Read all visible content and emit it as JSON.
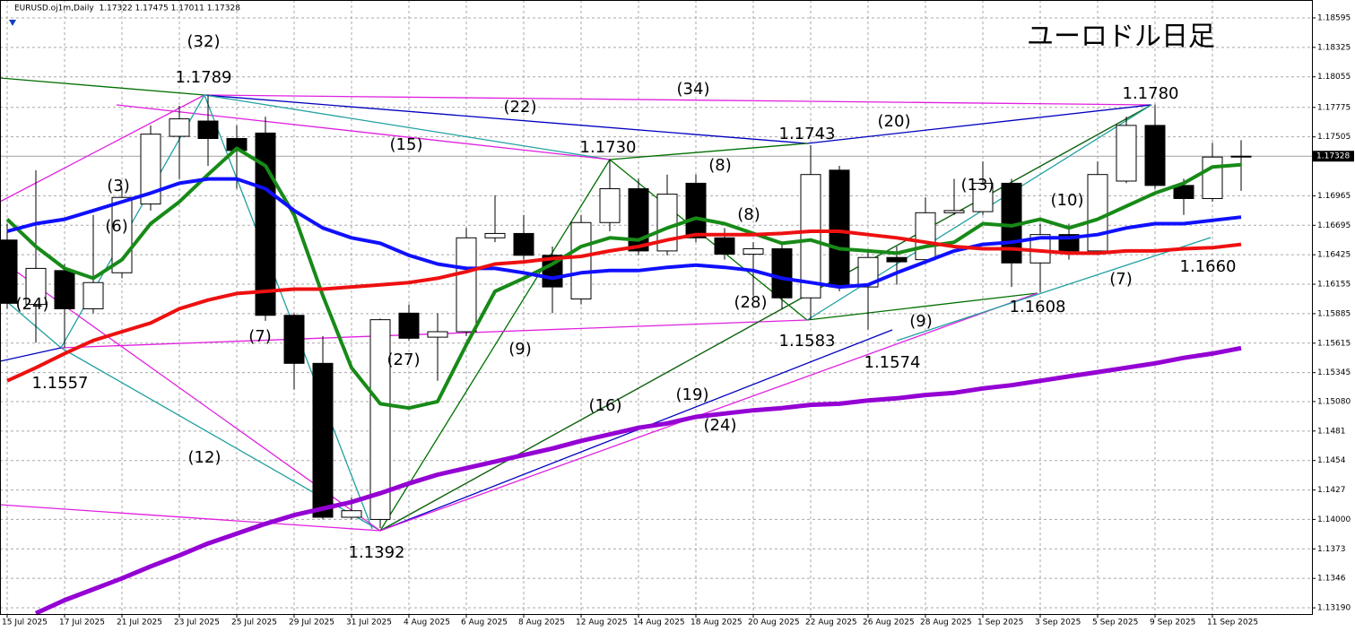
{
  "chart_data": {
    "type": "candlestick",
    "header": "EURUSD.oj1m,Daily  1.17322 1.17475 1.17011 1.17328",
    "title": "ユーロドル日足",
    "categories": [
      "15 Jul 2025",
      null,
      "17 Jul 2025",
      null,
      "21 Jul 2025",
      null,
      "23 Jul 2025",
      null,
      "25 Jul 2025",
      null,
      "29 Jul 2025",
      null,
      "31 Jul 2025",
      null,
      "4 Aug 2025",
      null,
      "6 Aug 2025",
      null,
      "8 Aug 2025",
      null,
      "12 Aug 2025",
      null,
      "14 Aug 2025",
      null,
      "18 Aug 2025",
      null,
      "20 Aug 2025",
      null,
      "22 Aug 2025",
      null,
      "26 Aug 2025",
      null,
      "28 Aug 2025",
      null,
      "1 Sep 2025",
      null,
      "3 Sep 2025",
      null,
      "5 Sep 2025",
      null,
      "9 Sep 2025",
      null,
      "11 Sep 2025",
      null
    ],
    "open": [
      1.1656,
      1.1597,
      1.1628,
      1.1593,
      1.1626,
      1.1689,
      1.1751,
      1.1765,
      1.1749,
      1.1754,
      1.1587,
      1.1543,
      1.1402,
      1.14,
      1.1589,
      1.1567,
      1.1572,
      1.1658,
      1.1662,
      1.1642,
      1.1602,
      1.1672,
      1.1703,
      1.1646,
      1.1708,
      1.1658,
      1.1643,
      1.1648,
      1.1603,
      1.172,
      1.1613,
      1.164,
      1.1638,
      1.1681,
      1.1682,
      1.1708,
      1.1635,
      1.1661,
      1.1646,
      1.171,
      1.1761,
      1.1706,
      1.1694,
      1.17322
    ],
    "high": [
      1.1671,
      1.172,
      1.1634,
      1.1679,
      1.1703,
      1.1761,
      1.1779,
      1.1789,
      1.1761,
      1.1769,
      1.1589,
      1.1568,
      1.142,
      1.1584,
      1.1597,
      1.1589,
      1.1667,
      1.1697,
      1.1679,
      1.165,
      1.1679,
      1.173,
      1.1712,
      1.1716,
      1.1716,
      1.1667,
      1.1654,
      1.1654,
      1.1743,
      1.1724,
      1.1646,
      1.165,
      1.1695,
      1.1712,
      1.1728,
      1.1712,
      1.1671,
      1.1671,
      1.1728,
      1.1769,
      1.178,
      1.1712,
      1.1745,
      1.17475
    ],
    "low": [
      1.1593,
      1.1562,
      1.1557,
      1.1589,
      1.1621,
      1.1683,
      1.1712,
      1.1724,
      1.1703,
      1.1582,
      1.1519,
      1.14,
      1.14,
      1.1392,
      1.1564,
      1.1527,
      1.1568,
      1.1654,
      1.1638,
      1.1589,
      1.1597,
      1.1664,
      1.1642,
      1.1642,
      1.1654,
      1.1638,
      1.1605,
      1.1593,
      1.1583,
      1.1609,
      1.1574,
      1.1615,
      1.1634,
      1.1679,
      1.1679,
      1.1613,
      1.1608,
      1.1638,
      1.1642,
      1.1708,
      1.1703,
      1.1679,
      1.1691,
      1.17011
    ],
    "close": [
      1.1598,
      1.163,
      1.1593,
      1.1617,
      1.1695,
      1.1753,
      1.1767,
      1.1749,
      1.1738,
      1.1587,
      1.1543,
      1.1402,
      1.1408,
      1.1583,
      1.1566,
      1.1572,
      1.1658,
      1.1662,
      1.1642,
      1.1613,
      1.1672,
      1.1703,
      1.1646,
      1.1698,
      1.1658,
      1.1643,
      1.1648,
      1.1603,
      1.1716,
      1.1613,
      1.164,
      1.1636,
      1.1681,
      1.1683,
      1.1708,
      1.1635,
      1.1661,
      1.1646,
      1.1716,
      1.1761,
      1.1706,
      1.1694,
      1.1732,
      1.17328
    ],
    "up_color": "#ffffff",
    "down_color": "#000000",
    "series": [
      {
        "color": "#178a17",
        "line_width": 4,
        "values": [
          1.1675,
          1.165,
          1.163,
          1.1621,
          1.1638,
          1.1671,
          1.1691,
          1.1716,
          1.174,
          1.1724,
          1.1679,
          1.1605,
          1.1539,
          1.1506,
          1.1502,
          1.1508,
          1.156,
          1.1609,
          1.1621,
          1.1634,
          1.165,
          1.1658,
          1.1656,
          1.1667,
          1.1676,
          1.1671,
          1.1662,
          1.1653,
          1.1656,
          1.1648,
          1.1646,
          1.1644,
          1.165,
          1.1654,
          1.1671,
          1.1669,
          1.1675,
          1.1667,
          1.1675,
          1.1687,
          1.1699,
          1.1708,
          1.1723,
          1.1725
        ]
      },
      {
        "color": "#1010ff",
        "line_width": 4,
        "values": [
          1.1664,
          1.1671,
          1.1675,
          1.1683,
          1.1691,
          1.1699,
          1.1708,
          1.1712,
          1.1712,
          1.1703,
          1.1683,
          1.1667,
          1.1658,
          1.1653,
          1.1642,
          1.1634,
          1.163,
          1.163,
          1.1626,
          1.1621,
          1.1626,
          1.1628,
          1.1628,
          1.1631,
          1.1633,
          1.1631,
          1.1628,
          1.1621,
          1.1617,
          1.1613,
          1.1615,
          1.1626,
          1.1636,
          1.1646,
          1.1652,
          1.1654,
          1.1658,
          1.1658,
          1.1661,
          1.1667,
          1.1671,
          1.1671,
          1.1674,
          1.1677
        ]
      },
      {
        "color": "#ee1010",
        "line_width": 4,
        "values": [
          1.1527,
          1.1539,
          1.1552,
          1.1564,
          1.1572,
          1.158,
          1.1593,
          1.1601,
          1.1607,
          1.1609,
          1.1611,
          1.1611,
          1.1613,
          1.1615,
          1.1617,
          1.1621,
          1.1627,
          1.1634,
          1.1636,
          1.1639,
          1.1641,
          1.1646,
          1.165,
          1.1656,
          1.1661,
          1.1661,
          1.1661,
          1.1662,
          1.1664,
          1.1664,
          1.1661,
          1.1658,
          1.1654,
          1.165,
          1.1648,
          1.1648,
          1.1646,
          1.1644,
          1.1644,
          1.1646,
          1.1646,
          1.1648,
          1.1649,
          1.1652
        ]
      },
      {
        "color": "#9400d3",
        "line_width": 5,
        "values": [
          null,
          1.1314,
          1.1326,
          1.1336,
          1.1346,
          1.1357,
          1.1367,
          1.1378,
          1.1387,
          1.1396,
          1.1404,
          1.141,
          1.1416,
          1.1424,
          1.1433,
          1.1441,
          1.1447,
          1.1453,
          1.1459,
          1.1465,
          1.1472,
          1.1478,
          1.1484,
          1.1488,
          1.1494,
          1.1497,
          1.15,
          1.1502,
          1.1505,
          1.1506,
          1.1509,
          1.1511,
          1.1514,
          1.1516,
          1.152,
          1.1523,
          1.1527,
          1.1531,
          1.1535,
          1.1539,
          1.1543,
          1.1548,
          1.1552,
          1.1557
        ]
      }
    ],
    "last_price": 1.17328,
    "ylim": [
      1.13133,
      1.18759
    ],
    "yticks": [
      1.18595,
      1.18325,
      1.18055,
      1.17775,
      1.17505,
      1.16965,
      1.16695,
      1.16425,
      1.16155,
      1.15885,
      1.15615,
      1.15345,
      {
        "value": 1.1508,
        "label": "1.15080"
      },
      1.1481,
      1.1454,
      1.1427,
      {
        "value": 1.14,
        "label": "1.14000"
      },
      1.1373,
      1.1346,
      {
        "value": 1.1319,
        "label": "1.13190"
      }
    ],
    "grid": true,
    "annotations": [
      "(32)",
      "1.1789",
      "(34)",
      "(22)",
      "1.1780",
      "(15)",
      "1.1730",
      "1.1743",
      "(20)",
      "(3)",
      "(8)",
      "(6)",
      "(8)",
      "(13)",
      "(10)",
      "(24)",
      "(28)",
      "(7)",
      "(9)",
      "1.1583",
      "(7)",
      "1.1660",
      "1.1608",
      "(27)",
      "(9)",
      "1.1557",
      "1.1574",
      "(16)",
      "(19)",
      "(12)",
      "(24)",
      "1.1392"
    ]
  }
}
